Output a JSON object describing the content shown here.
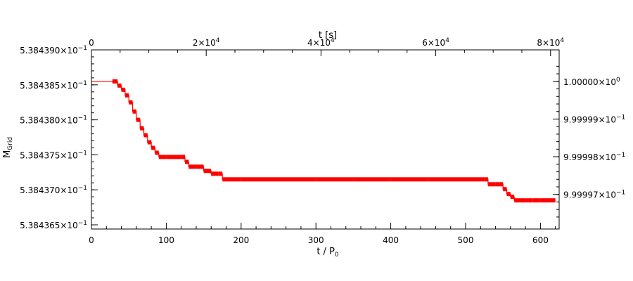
{
  "chart_data": {
    "type": "line",
    "color": "#ff0000",
    "axes": {
      "bottom": {
        "label": "t / P",
        "label_sub": "0",
        "range": [
          0,
          625
        ],
        "ticks": [
          0,
          100,
          200,
          300,
          400,
          500,
          600
        ],
        "tick_labels": [
          "0",
          "100",
          "200",
          "300",
          "400",
          "500",
          "600"
        ]
      },
      "top": {
        "label": "t [s]",
        "range": [
          0,
          81500
        ],
        "ticks": [
          0,
          20000,
          40000,
          60000,
          80000
        ],
        "tick_labels": [
          {
            "base": "0",
            "exp": ""
          },
          {
            "base": "2×10",
            "exp": "4"
          },
          {
            "base": "4×10",
            "exp": "4"
          },
          {
            "base": "6×10",
            "exp": "4"
          },
          {
            "base": "8×10",
            "exp": "4"
          }
        ]
      },
      "left": {
        "label": "M",
        "label_sub": "Grid",
        "range": [
          0.53843644,
          0.538439
        ],
        "ticks": [
          0.5384365,
          0.538437,
          0.5384375,
          0.538438,
          0.5384385,
          0.538439
        ],
        "tick_labels": [
          {
            "base": "5.384365×10",
            "exp": "−1"
          },
          {
            "base": "5.384370×10",
            "exp": "−1"
          },
          {
            "base": "5.384375×10",
            "exp": "−1"
          },
          {
            "base": "5.384380×10",
            "exp": "−1"
          },
          {
            "base": "5.384385×10",
            "exp": "−1"
          },
          {
            "base": "5.384390×10",
            "exp": "−1"
          }
        ]
      },
      "right": {
        "ticks": [
          0.999997,
          0.999998,
          0.999999,
          1.0
        ],
        "tick_labels": [
          {
            "base": "9.99997×10",
            "exp": "−1"
          },
          {
            "base": "9.99998×10",
            "exp": "−1"
          },
          {
            "base": "9.99999×10",
            "exp": "−1"
          },
          {
            "base": "1.00000×10",
            "exp": "0"
          }
        ]
      }
    },
    "series": [
      {
        "x": [
          0,
          28,
          35,
          40,
          45,
          50,
          55,
          60,
          65,
          70,
          75,
          80,
          85,
          90,
          100,
          110,
          120,
          125,
          130,
          140,
          150,
          160,
          170,
          175,
          200,
          250,
          300,
          350,
          400,
          450,
          500,
          525,
          530,
          540,
          550,
          555,
          560,
          565,
          570,
          580,
          590,
          600,
          610,
          620
        ],
        "y": [
          0.53843855,
          0.53843855,
          0.53843849,
          0.53843843,
          0.53843835,
          0.53843825,
          0.53843812,
          0.538438,
          0.53843788,
          0.53843778,
          0.53843768,
          0.5384376,
          0.53843753,
          0.53843747,
          0.53843747,
          0.53843747,
          0.53843747,
          0.5384374,
          0.53843733,
          0.53843733,
          0.53843727,
          0.53843723,
          0.53843723,
          0.53843715,
          0.53843715,
          0.53843715,
          0.53843715,
          0.53843715,
          0.53843715,
          0.53843715,
          0.53843715,
          0.53843715,
          0.53843708,
          0.53843708,
          0.53843701,
          0.53843694,
          0.5384369,
          0.53843685,
          0.53843685,
          0.53843685,
          0.53843685,
          0.53843685,
          0.53843685,
          0.53843685
        ]
      }
    ]
  }
}
